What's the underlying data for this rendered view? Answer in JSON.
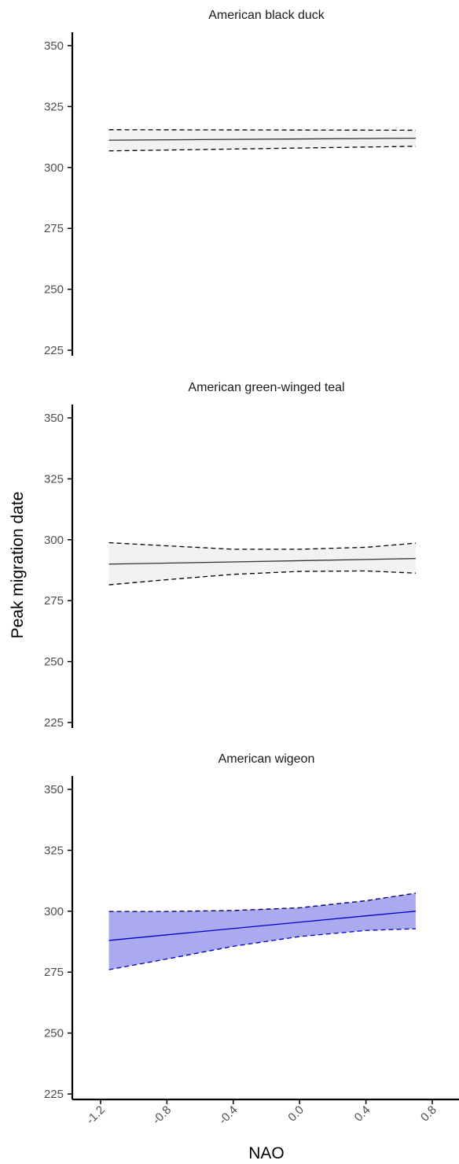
{
  "figure": {
    "ylabel": "Peak migration date",
    "xlabel": "NAO"
  },
  "chart_data": [
    {
      "type": "line",
      "title": "American black duck",
      "xlabel": "NAO",
      "ylabel": "Peak migration date",
      "xlim": [
        -1.4,
        0.85
      ],
      "ylim": [
        222,
        355
      ],
      "x_ticks": [
        "-1.2",
        "-0.8",
        "-0.4",
        "0.0",
        "0.4",
        "0.8"
      ],
      "y_ticks": [
        "225",
        "250",
        "275",
        "300",
        "325",
        "350"
      ],
      "grid": false,
      "color": "#333333",
      "fill": "#f2f2f2",
      "series": [
        {
          "x": [
            -1.15,
            0.7
          ],
          "fit": [
            311.2,
            312.0
          ],
          "lower": [
            306.8,
            308.7
          ],
          "upper": [
            315.5,
            315.3
          ]
        }
      ]
    },
    {
      "type": "line",
      "title": "American green-winged teal",
      "xlabel": "NAO",
      "ylabel": "Peak migration date",
      "xlim": [
        -1.4,
        0.85
      ],
      "ylim": [
        222,
        355
      ],
      "x_ticks": [
        "-1.2",
        "-0.8",
        "-0.4",
        "0.0",
        "0.4",
        "0.8"
      ],
      "y_ticks": [
        "225",
        "250",
        "275",
        "300",
        "325",
        "350"
      ],
      "grid": false,
      "color": "#333333",
      "fill": "#f2f2f2",
      "series": [
        {
          "x": [
            -1.15,
            -0.8,
            -0.4,
            0.0,
            0.4,
            0.7
          ],
          "fit": [
            290.0,
            290.4,
            290.9,
            291.4,
            291.9,
            292.3
          ],
          "lower": [
            281.5,
            283.6,
            285.8,
            287.0,
            287.2,
            286.3
          ],
          "upper": [
            298.8,
            297.5,
            296.1,
            296.1,
            296.9,
            298.6
          ]
        }
      ]
    },
    {
      "type": "line",
      "title": "American wigeon",
      "xlabel": "NAO",
      "ylabel": "Peak migration date",
      "xlim": [
        -1.4,
        0.85
      ],
      "ylim": [
        222,
        355
      ],
      "x_ticks": [
        "-1.2",
        "-0.8",
        "-0.4",
        "0.0",
        "0.4",
        "0.8"
      ],
      "y_ticks": [
        "225",
        "250",
        "275",
        "300",
        "325",
        "350"
      ],
      "grid": false,
      "color": "#0000cc",
      "fill": "#aaaaee",
      "series": [
        {
          "x": [
            -1.15,
            -0.8,
            -0.4,
            0.0,
            0.4,
            0.7
          ],
          "fit": [
            288.0,
            290.3,
            292.9,
            295.5,
            298.1,
            300.0
          ],
          "lower": [
            276.0,
            280.4,
            285.6,
            289.6,
            292.1,
            292.8
          ],
          "upper": [
            299.9,
            299.9,
            300.3,
            301.4,
            304.3,
            307.4
          ]
        }
      ]
    }
  ]
}
